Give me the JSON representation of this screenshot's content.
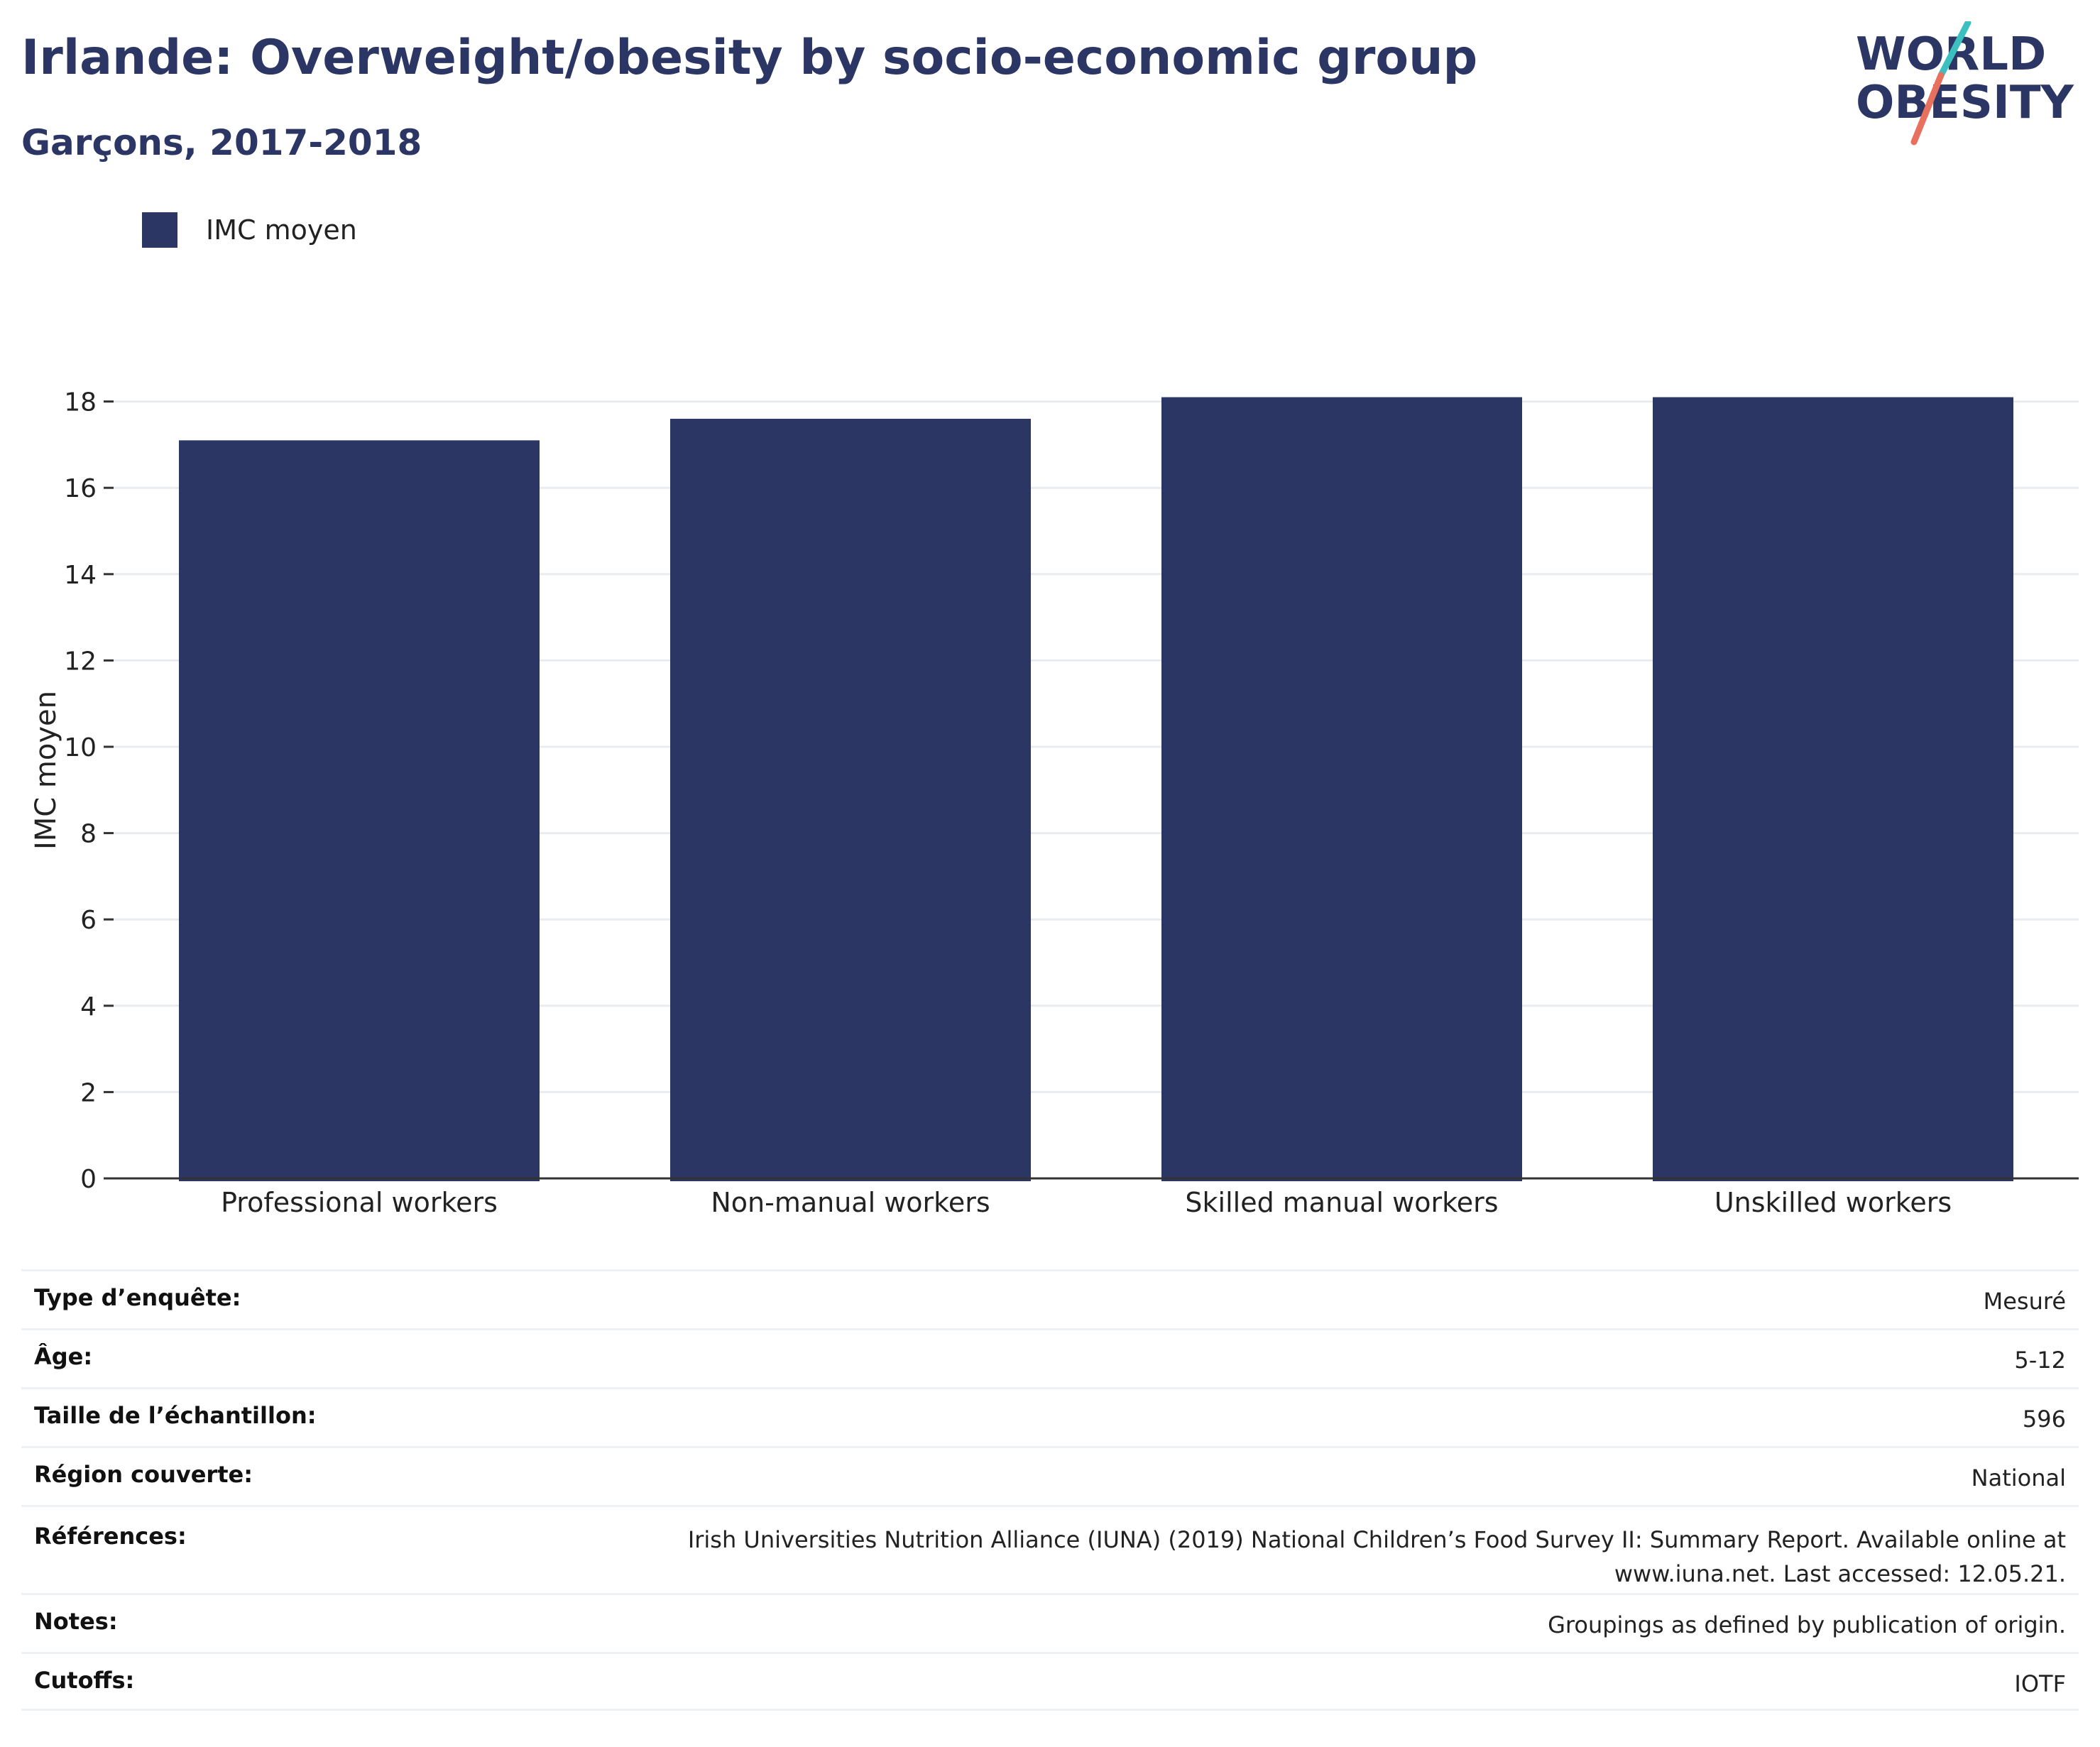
{
  "header": {
    "title": "Irlande: Overweight/obesity by socio-economic group",
    "subtitle": "Garçons, 2017-2018"
  },
  "logo": {
    "line1": "WORLD",
    "line2": "OBESITY",
    "colors": {
      "text": "#2b3664",
      "slash_teal": "#3bbfbf",
      "slash_coral": "#e8705f"
    }
  },
  "legend": {
    "label": "IMC moyen"
  },
  "chart_data": {
    "type": "bar",
    "categories": [
      "Professional workers",
      "Non-manual workers",
      "Skilled manual workers",
      "Unskilled workers"
    ],
    "series": [
      {
        "name": "IMC moyen",
        "values": [
          17.1,
          17.6,
          18.1,
          18.1
        ],
        "color": "#2b3664"
      }
    ],
    "title": "Irlande: Overweight/obesity by socio-economic group",
    "subtitle": "Garçons, 2017-2018",
    "xlabel": "",
    "ylabel": "IMC moyen",
    "ylim": [
      0,
      18.5
    ],
    "yticks": [
      0,
      2,
      4,
      6,
      8,
      10,
      12,
      14,
      16,
      18
    ],
    "grid": true,
    "legend_position": "top-left"
  },
  "details": [
    {
      "label": "Type d’enquête:",
      "value": "Mesuré"
    },
    {
      "label": "Âge:",
      "value": "5-12"
    },
    {
      "label": "Taille de l’échantillon:",
      "value": "596"
    },
    {
      "label": "Région couverte:",
      "value": "National"
    },
    {
      "label": "Références:",
      "value": "Irish Universities Nutrition Alliance (IUNA) (2019) National Children’s Food Survey II: Summary Report. Available online at www.iuna.net. Last accessed: 12.05.21."
    },
    {
      "label": "Notes:",
      "value": "Groupings as defined by publication of origin."
    },
    {
      "label": "Cutoffs:",
      "value": "IOTF"
    }
  ]
}
